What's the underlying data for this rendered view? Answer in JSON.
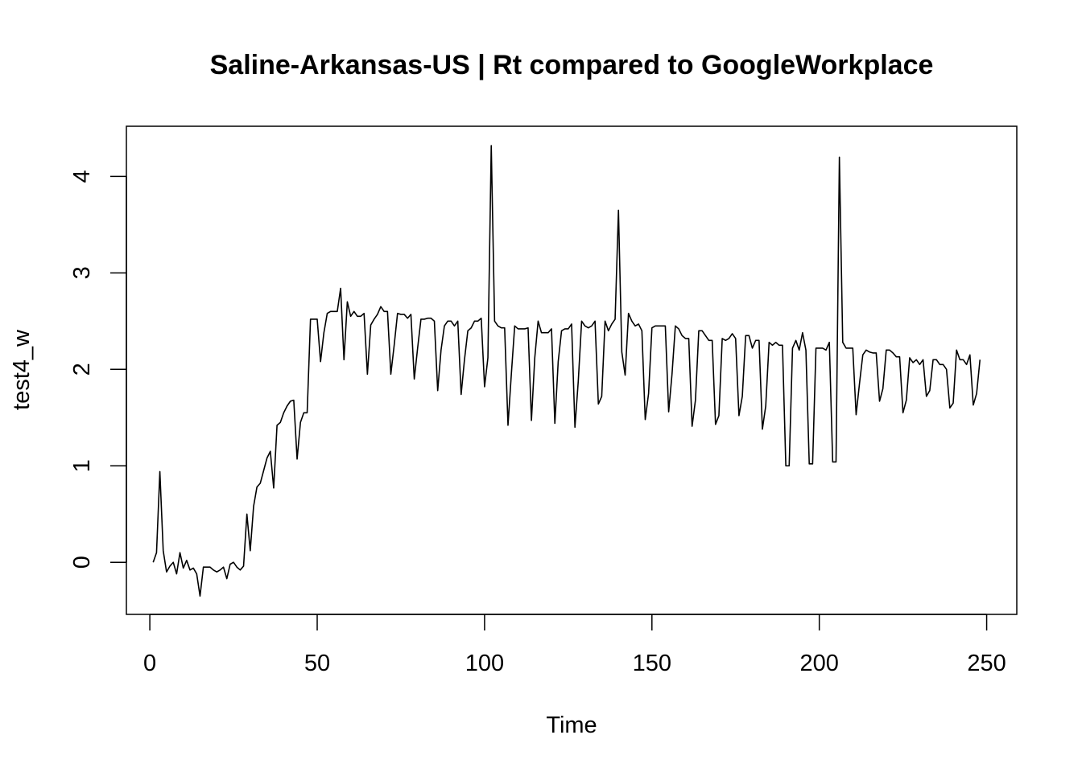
{
  "chart_data": {
    "type": "line",
    "title": "Saline-Arkansas-US | Rt compared to GoogleWorkplace",
    "xlabel": "Time",
    "ylabel": "test4_w",
    "xlim": [
      -7,
      259
    ],
    "ylim": [
      -0.54,
      4.52
    ],
    "x_ticks": [
      0,
      50,
      100,
      150,
      200,
      250
    ],
    "y_ticks": [
      0,
      1,
      2,
      3,
      4
    ],
    "grid": false,
    "legend": "none",
    "line_color": "#000000",
    "series": [
      {
        "x_start": 1,
        "values": [
          0.0,
          0.1,
          0.94,
          0.12,
          -0.1,
          -0.04,
          0.0,
          -0.12,
          0.1,
          -0.06,
          0.02,
          -0.08,
          -0.06,
          -0.12,
          -0.35,
          -0.05,
          -0.05,
          -0.05,
          -0.08,
          -0.1,
          -0.08,
          -0.05,
          -0.17,
          -0.02,
          0.0,
          -0.05,
          -0.08,
          -0.04,
          0.5,
          0.12,
          0.58,
          0.78,
          0.82,
          0.95,
          1.08,
          1.15,
          0.77,
          1.42,
          1.45,
          1.55,
          1.62,
          1.67,
          1.68,
          1.07,
          1.45,
          1.55,
          1.55,
          2.52,
          2.52,
          2.52,
          2.08,
          2.38,
          2.58,
          2.6,
          2.6,
          2.6,
          2.84,
          2.1,
          2.7,
          2.55,
          2.6,
          2.55,
          2.55,
          2.58,
          1.95,
          2.46,
          2.52,
          2.57,
          2.65,
          2.6,
          2.6,
          1.95,
          2.25,
          2.58,
          2.57,
          2.57,
          2.53,
          2.57,
          1.9,
          2.22,
          2.52,
          2.52,
          2.53,
          2.53,
          2.5,
          1.78,
          2.2,
          2.45,
          2.5,
          2.5,
          2.45,
          2.5,
          1.74,
          2.1,
          2.4,
          2.43,
          2.5,
          2.5,
          2.53,
          1.82,
          2.12,
          4.32,
          2.5,
          2.45,
          2.43,
          2.43,
          1.42,
          1.95,
          2.45,
          2.42,
          2.42,
          2.42,
          2.43,
          1.47,
          2.12,
          2.5,
          2.38,
          2.38,
          2.38,
          2.42,
          1.44,
          2.08,
          2.4,
          2.42,
          2.42,
          2.47,
          1.4,
          1.88,
          2.5,
          2.45,
          2.43,
          2.45,
          2.5,
          1.64,
          1.72,
          2.5,
          2.4,
          2.47,
          2.52,
          3.65,
          2.18,
          1.94,
          2.58,
          2.5,
          2.45,
          2.47,
          2.4,
          1.48,
          1.75,
          2.43,
          2.45,
          2.45,
          2.45,
          2.45,
          1.56,
          1.95,
          2.45,
          2.42,
          2.35,
          2.32,
          2.32,
          1.41,
          1.68,
          2.4,
          2.4,
          2.35,
          2.3,
          2.3,
          1.43,
          1.52,
          2.32,
          2.3,
          2.32,
          2.37,
          2.32,
          1.52,
          1.72,
          2.35,
          2.35,
          2.22,
          2.3,
          2.3,
          1.38,
          1.62,
          2.28,
          2.25,
          2.28,
          2.25,
          2.25,
          1.0,
          1.0,
          2.22,
          2.3,
          2.2,
          2.38,
          2.2,
          1.02,
          1.02,
          2.22,
          2.22,
          2.22,
          2.2,
          2.28,
          1.04,
          1.04,
          4.2,
          2.28,
          2.22,
          2.22,
          2.22,
          1.53,
          1.85,
          2.15,
          2.2,
          2.18,
          2.17,
          2.17,
          1.67,
          1.8,
          2.2,
          2.2,
          2.17,
          2.13,
          2.13,
          1.55,
          1.68,
          2.12,
          2.07,
          2.1,
          2.05,
          2.1,
          1.72,
          1.78,
          2.1,
          2.1,
          2.05,
          2.05,
          2.0,
          1.6,
          1.65,
          2.2,
          2.1,
          2.1,
          2.05,
          2.15,
          1.63,
          1.75,
          2.1
        ]
      }
    ]
  }
}
